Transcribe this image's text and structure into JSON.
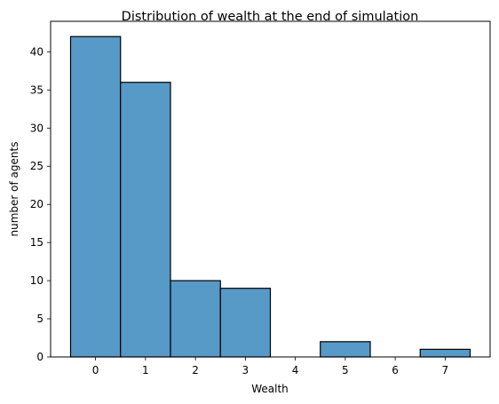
{
  "chart_data": {
    "type": "bar",
    "title": "Distribution of wealth at the end of simulation",
    "xlabel": "Wealth",
    "ylabel": "number of agents",
    "categories": [
      "0",
      "1",
      "2",
      "3",
      "4",
      "5",
      "6",
      "7"
    ],
    "values": [
      42,
      36,
      10,
      9,
      0,
      2,
      0,
      1
    ],
    "xlim": [
      -0.9,
      7.9
    ],
    "ylim": [
      0,
      44
    ],
    "xticks": [
      0,
      1,
      2,
      3,
      4,
      5,
      6,
      7
    ],
    "yticks": [
      0,
      5,
      10,
      15,
      20,
      25,
      30,
      35,
      40
    ],
    "grid": false,
    "bar_color": "#5799c7",
    "bar_edge_color": "#000000"
  }
}
